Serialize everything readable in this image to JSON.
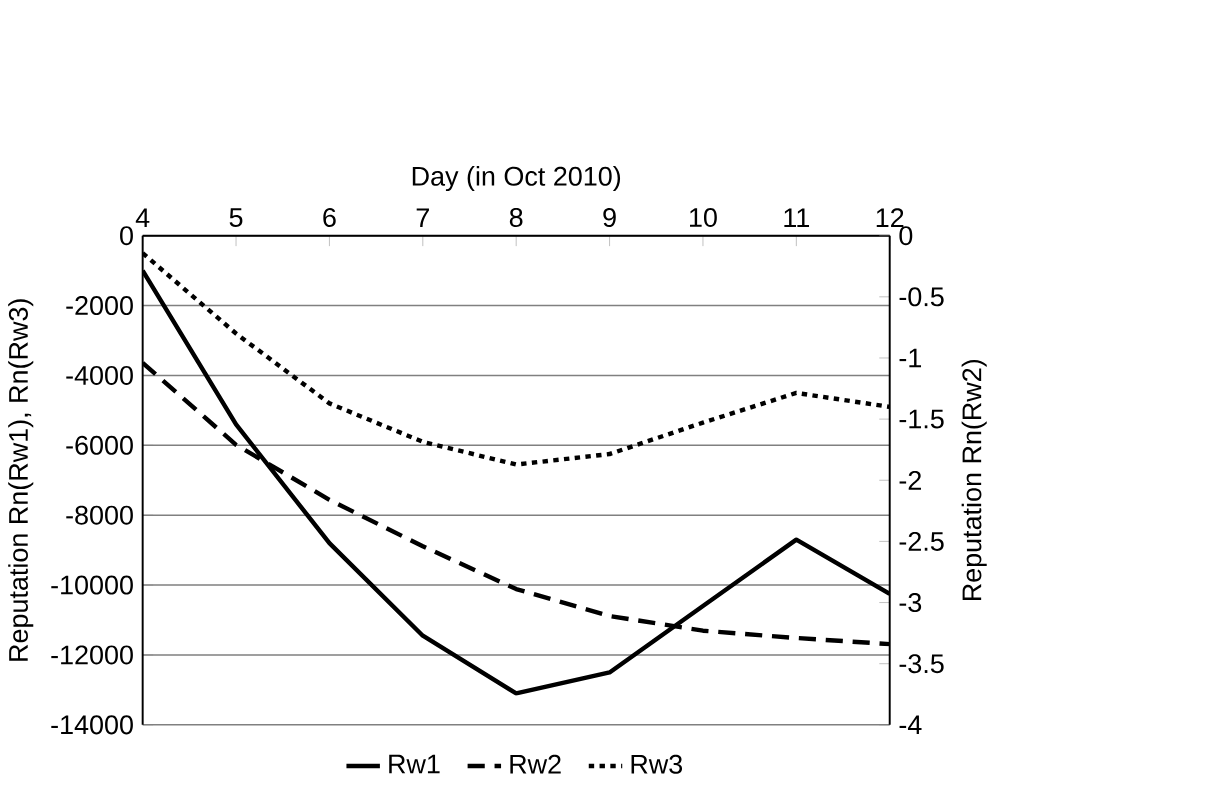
{
  "chart_data": {
    "type": "line",
    "xlabel": "Day (in Oct 2010)",
    "ylabel": "Reputation Rn(Rw1), Rn(Rw3)",
    "y2label": "Reputation Rn(Rw2)",
    "x": [
      4,
      5,
      6,
      7,
      8,
      9,
      10,
      11,
      12
    ],
    "xlim": [
      4,
      12
    ],
    "xticks": [
      4,
      5,
      6,
      7,
      8,
      9,
      10,
      11,
      12
    ],
    "ylim": [
      -14000,
      0
    ],
    "yticks": [
      -14000,
      -12000,
      -10000,
      -8000,
      -6000,
      -4000,
      -2000,
      0
    ],
    "y2lim": [
      -4,
      0
    ],
    "y2ticks": [
      -4,
      -3.5,
      -3,
      -2.5,
      -2,
      -1.5,
      -1,
      -0.5,
      0
    ],
    "grid": "y",
    "legend": "bottom",
    "marker": "none",
    "series": [
      {
        "name": "Rw1",
        "color": "#000000",
        "line_style": "solid",
        "values": [
          -1000,
          -5400,
          -8800,
          -11450,
          -13100,
          -12500,
          -10600,
          -8700,
          -10250
        ]
      },
      {
        "name": "Rw2",
        "color": "#000000",
        "line_style": "dashed",
        "axis": "y2",
        "values": [
          -1.04,
          -1.71,
          -2.16,
          -2.54,
          -2.89,
          -3.11,
          -3.23,
          -3.29,
          -3.34
        ]
      },
      {
        "name": "Rw3",
        "color": "#000000",
        "line_style": "dotted",
        "values": [
          -500,
          -2800,
          -4800,
          -5900,
          -6550,
          -6250,
          -5350,
          -4500,
          -4900
        ]
      }
    ]
  }
}
